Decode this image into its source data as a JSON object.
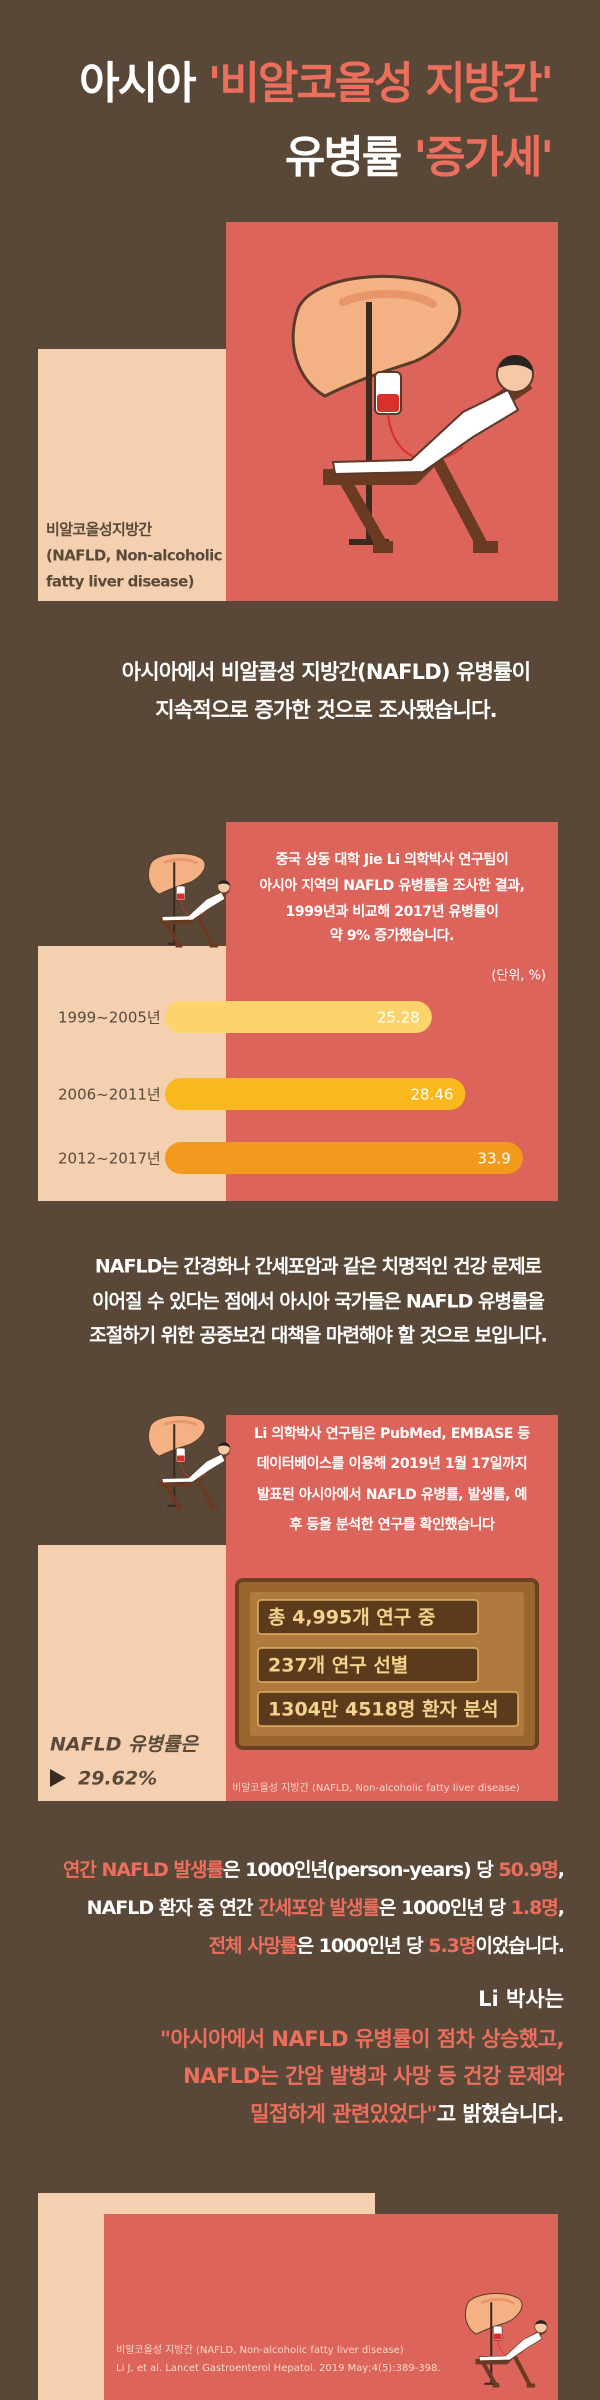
{
  "title": {
    "line1": "아시아 ",
    "line1_accent": "'비알코올성 지방간'",
    "line2": "유병률 ",
    "line2_accent": "'증가세'"
  },
  "hero_caption": [
    "비알코올성지방간",
    "(NAFLD, Non-alcoholic",
    "fatty liver disease)"
  ],
  "intro": [
    "아시아에서 비알콜성 지방간(NAFLD) 유병률이",
    "지속적으로 증가한 것으로 조사됐습니다."
  ],
  "study": [
    "중국 상동 대학 Jie Li 의학박사 연구팀이",
    "아시아 지역의 NAFLD 유병률을 조사한 결과,",
    "1999년과 비교해 2017년 유병률이",
    "약 9% 증가했습니다."
  ],
  "chart_data": {
    "type": "bar",
    "orientation": "horizontal",
    "unit_note": "(단위, %)",
    "categories": [
      "1999~2005년",
      "2006~2011년",
      "2012~2017년"
    ],
    "values": [
      25.28,
      28.46,
      33.9
    ],
    "colors": [
      "#fdd46c",
      "#f8b81e",
      "#f29a1d"
    ],
    "xlim": [
      0,
      36
    ]
  },
  "discussion": [
    "NAFLD는 간경화나 간세포암과 같은 치명적인 건강 문제로",
    "이어질 수 있다는 점에서 아시아 국가들은 NAFLD 유병률을",
    "조절하기 위한 공중보건 대책을 마련해야 할 것으로 보입니다."
  ],
  "review": {
    "text": [
      "Li 의학박사 연구팀은 PubMed, EMBASE 등",
      "데이터베이스를 이용해 2019년 1월 17일까지",
      "발표된 아시아에서 NAFLD 유병률, 발생률, 예",
      "후 등을 분석한 연구를 확인했습니다"
    ],
    "stats": [
      "총 4,995개 연구 중",
      "237개 연구 선별",
      "1304만 4518명 환자 분석"
    ],
    "prevalence_label": "NAFLD 유병률은",
    "prevalence_value": "29.62%",
    "note": "비알코올성 지방간 (NAFLD, Non-alcoholic fatty liver disease)"
  },
  "incidence": [
    [
      {
        "text": "연간 NAFLD 발생률",
        "accent": true
      },
      {
        "text": "은 1000인년(person-years) 당 ",
        "accent": false
      },
      {
        "text": "50.9명",
        "accent": true
      },
      {
        "text": ",",
        "accent": false
      }
    ],
    [
      {
        "text": "NAFLD 환자 중 연간 ",
        "accent": false
      },
      {
        "text": "간세포암 발생률",
        "accent": true
      },
      {
        "text": "은 1000인년 당 ",
        "accent": false
      },
      {
        "text": "1.8명",
        "accent": true
      },
      {
        "text": ",",
        "accent": false
      }
    ],
    [
      {
        "text": "전체 사망률",
        "accent": true
      },
      {
        "text": "은 1000인년 당 ",
        "accent": false
      },
      {
        "text": "5.3명",
        "accent": true
      },
      {
        "text": "이었습니다.",
        "accent": false
      }
    ]
  ],
  "quote": {
    "speaker": "Li 박사는",
    "lines": [
      "\"아시아에서 NAFLD 유병률이 점차 상승했고,",
      "NAFLD는 간암 발병과 사망 등 건강 문제와",
      "밀접하게 관련있었다\""
    ],
    "tail": "고 밝혔습니다."
  },
  "footer": {
    "note": "비알코올성 지방간 (NAFLD, Non-alcoholic fatty liver disease)",
    "citation": "Li J, et al. Lancet Gastroenterol Hepatol. 2019 May;4(5):389-398."
  }
}
